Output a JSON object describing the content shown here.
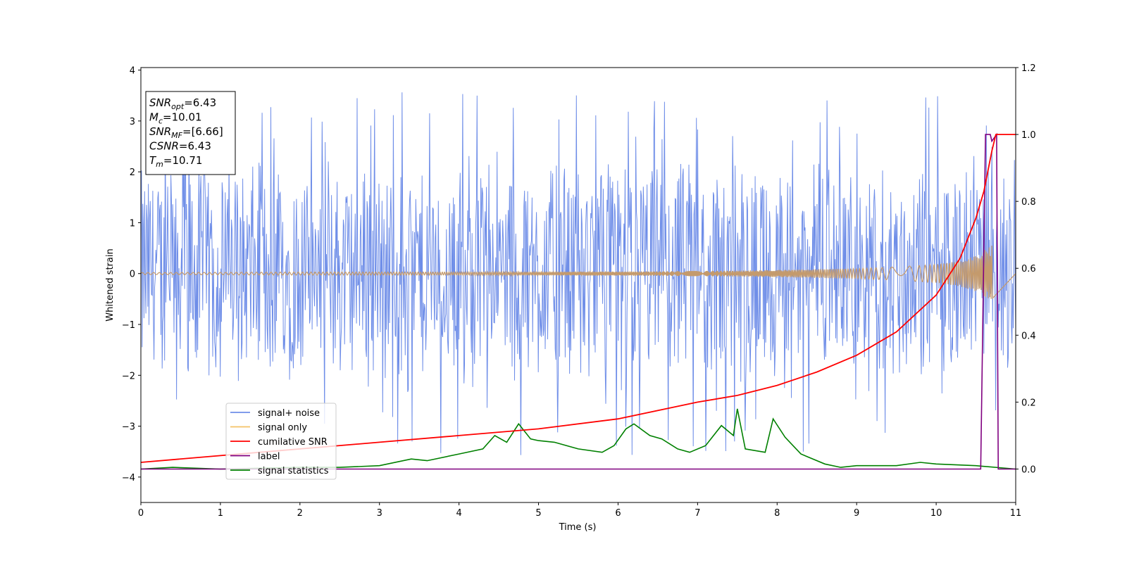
{
  "chart_data": {
    "type": "line",
    "xlabel": "Time (s)",
    "ylabel": "Whitened strain",
    "xlim": [
      0,
      11
    ],
    "ylim": [
      -4.5,
      4.05
    ],
    "ylim_right": [
      -0.1,
      1.2
    ],
    "x_ticks": [
      0,
      1,
      2,
      3,
      4,
      5,
      6,
      7,
      8,
      9,
      10,
      11
    ],
    "y_ticks": [
      -4,
      -3,
      -2,
      -1,
      0,
      1,
      2,
      3,
      4
    ],
    "y_ticks_labels": [
      "−4",
      "−3",
      "−2",
      "−1",
      "0",
      "1",
      "2",
      "3",
      "4"
    ],
    "y_right_ticks": [
      0.0,
      0.2,
      0.4,
      0.6,
      0.8,
      1.0,
      1.2
    ],
    "y_right_ticks_labels": [
      "0.0",
      "0.2",
      "0.4",
      "0.6",
      "0.8",
      "1.0",
      "1.2"
    ],
    "grid": false,
    "legend_placement": "lower-left",
    "colors": {
      "signal_noise": "#6f8ee8",
      "signal_only": "#f5c266",
      "signal_only_fill": "#c49a6c",
      "cumulative_snr": "#ff0000",
      "label": "#800080",
      "signal_statistics": "#008000"
    },
    "annotation": {
      "lines": [
        {
          "main": "SNR",
          "sub": "opt",
          "rest": "=6.43"
        },
        {
          "main": "M",
          "sub": "c",
          "rest": "=10.01"
        },
        {
          "main": "SNR",
          "sub": "MF",
          "rest": "=[6.66]"
        },
        {
          "main": "CSNR",
          "sub": "",
          "rest": "=6.43"
        },
        {
          "main": "T",
          "sub": "m",
          "rest": "=10.71"
        }
      ]
    },
    "series": [
      {
        "name": "signal+ noise",
        "axis": "left",
        "style": "noise-band",
        "x_range": [
          0,
          11
        ],
        "typical_amplitude": 2.1,
        "max_peak": 3.65,
        "min_peak": -4.15
      },
      {
        "name": "signal only",
        "axis": "left",
        "style": "chirp",
        "x": [
          0,
          2,
          4,
          6,
          7,
          8,
          9,
          9.5,
          10,
          10.3,
          10.5,
          10.6,
          10.7,
          10.71
        ],
        "envelope": [
          0.02,
          0.03,
          0.03,
          0.04,
          0.05,
          0.07,
          0.1,
          0.13,
          0.18,
          0.25,
          0.35,
          0.45,
          0.55,
          0.6
        ]
      },
      {
        "name": "cumilative SNR",
        "axis": "right",
        "x": [
          0,
          1,
          2,
          3,
          4,
          5,
          6,
          7,
          7.5,
          8,
          8.5,
          9,
          9.5,
          10,
          10.3,
          10.5,
          10.6,
          10.7,
          10.75,
          11
        ],
        "values": [
          0.02,
          0.04,
          0.06,
          0.08,
          0.1,
          0.12,
          0.15,
          0.2,
          0.22,
          0.25,
          0.29,
          0.34,
          0.41,
          0.52,
          0.63,
          0.75,
          0.83,
          0.95,
          1.0,
          1.0
        ]
      },
      {
        "name": "label",
        "axis": "right",
        "x": [
          0,
          10.56,
          10.62,
          10.64,
          10.68,
          10.7,
          10.76,
          10.78,
          11
        ],
        "values": [
          0,
          0,
          1.0,
          1.0,
          1.0,
          0.98,
          1.0,
          0,
          0
        ]
      },
      {
        "name": "signal statistics",
        "axis": "right",
        "x": [
          0,
          0.4,
          1,
          2,
          2.5,
          3,
          3.4,
          3.6,
          4,
          4.3,
          4.45,
          4.6,
          4.75,
          4.9,
          5,
          5.2,
          5.5,
          5.8,
          5.95,
          6.1,
          6.2,
          6.4,
          6.55,
          6.75,
          6.9,
          7.1,
          7.3,
          7.45,
          7.5,
          7.6,
          7.85,
          7.95,
          8.1,
          8.3,
          8.6,
          8.8,
          9,
          9.5,
          9.8,
          10,
          10.5,
          11
        ],
        "values": [
          0.0,
          0.005,
          0.0,
          0.005,
          0.005,
          0.01,
          0.03,
          0.025,
          0.045,
          0.06,
          0.1,
          0.08,
          0.135,
          0.09,
          0.085,
          0.08,
          0.06,
          0.05,
          0.07,
          0.12,
          0.135,
          0.1,
          0.09,
          0.06,
          0.05,
          0.07,
          0.13,
          0.1,
          0.18,
          0.06,
          0.05,
          0.15,
          0.095,
          0.045,
          0.015,
          0.005,
          0.01,
          0.01,
          0.02,
          0.015,
          0.01,
          0.0
        ]
      }
    ]
  }
}
